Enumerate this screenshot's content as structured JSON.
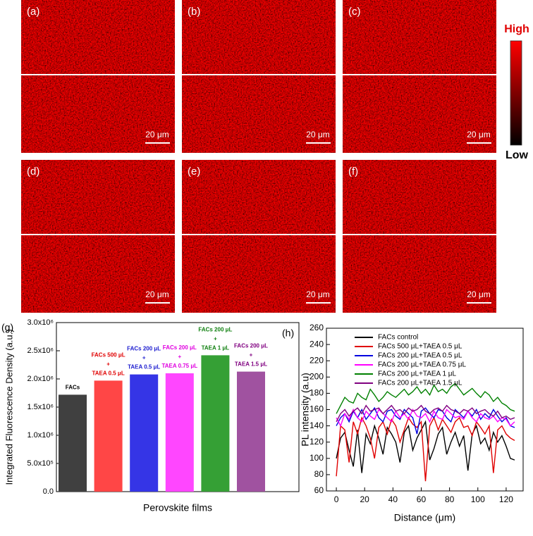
{
  "images": {
    "panels": [
      {
        "label": "(a)",
        "scale_bar": "20 μm"
      },
      {
        "label": "(b)",
        "scale_bar": "20 μm"
      },
      {
        "label": "(c)",
        "scale_bar": "20 μm"
      },
      {
        "label": "(d)",
        "scale_bar": "20 μm"
      },
      {
        "label": "(e)",
        "scale_bar": "20 μm"
      },
      {
        "label": "(f)",
        "scale_bar": "20 μm"
      }
    ],
    "colorbar": {
      "high": "High",
      "low": "Low"
    }
  },
  "chart_data": [
    {
      "type": "bar",
      "panel_label": "(g)",
      "x_label": "Perovskite films",
      "y_label": "Integrated Fluorescence Density (a.u.)",
      "categories": [
        [
          "FACs"
        ],
        [
          "FACs 500 μL",
          "+",
          "TAEA 0.5 μL"
        ],
        [
          "FACs 200 μL",
          "+",
          "TAEA 0.5 μL"
        ],
        [
          "FACs 200 μL",
          "+",
          "TAEA 0.75 μL"
        ],
        [
          "FACs 200 μL",
          "+",
          "TAEA 1 μL"
        ],
        [
          "FACs 200 μL",
          "+",
          "TAEA 1.5 μL"
        ]
      ],
      "values": [
        1720000,
        1970000,
        2080000,
        2100000,
        2420000,
        2130000
      ],
      "colors": [
        "#404040",
        "#ff4646",
        "#3535e6",
        "#ff46ff",
        "#35a035",
        "#a052a0"
      ],
      "label_colors": [
        "#000000",
        "#e00000",
        "#2020d0",
        "#e000e0",
        "#108010",
        "#800080"
      ],
      "ylim": [
        0,
        3000000
      ],
      "yticks": [
        {
          "value": 0,
          "label": "0.0"
        },
        {
          "value": 500000,
          "label": "5.0x10⁵"
        },
        {
          "value": 1000000,
          "label": "1.0x10⁶"
        },
        {
          "value": 1500000,
          "label": "1.5x10⁶"
        },
        {
          "value": 2000000,
          "label": "2.0x10⁶"
        },
        {
          "value": 2500000,
          "label": "2.5x10⁶"
        },
        {
          "value": 3000000,
          "label": "3.0x10⁶"
        }
      ]
    },
    {
      "type": "line",
      "panel_label": "(h)",
      "x_label": "Distance (μm)",
      "y_label": "PL intensity (a.u)",
      "legend": "upper left",
      "x": [
        0,
        3,
        6,
        9,
        12,
        15,
        18,
        21,
        24,
        27,
        30,
        33,
        36,
        39,
        42,
        45,
        48,
        51,
        54,
        57,
        60,
        63,
        66,
        69,
        72,
        75,
        78,
        81,
        84,
        87,
        90,
        93,
        96,
        99,
        102,
        105,
        108,
        111,
        114,
        117,
        120,
        123,
        126
      ],
      "series": [
        {
          "name": "FACs control",
          "color": "#000000",
          "values": [
            100,
            125,
            132,
            110,
            90,
            135,
            82,
            130,
            118,
            140,
            125,
            105,
            138,
            130,
            120,
            95,
            132,
            140,
            110,
            125,
            135,
            145,
            98,
            112,
            130,
            138,
            105,
            120,
            132,
            115,
            128,
            85,
            130,
            140,
            118,
            125,
            110,
            132,
            120,
            128,
            115,
            100,
            98
          ]
        },
        {
          "name": "FACs 500 μL+TAEA 0.5 μL",
          "color": "#e00000",
          "values": [
            78,
            140,
            135,
            95,
            145,
            130,
            150,
            140,
            125,
            100,
            138,
            145,
            130,
            148,
            140,
            120,
            135,
            150,
            142,
            138,
            145,
            72,
            140,
            150,
            135,
            148,
            140,
            132,
            145,
            150,
            138,
            140,
            128,
            145,
            138,
            130,
            140,
            82,
            135,
            140,
            130,
            125,
            122
          ]
        },
        {
          "name": "FACs 200 μL+TAEA 0.5 μL",
          "color": "#0000e0",
          "values": [
            140,
            150,
            155,
            145,
            158,
            150,
            160,
            148,
            155,
            162,
            150,
            145,
            158,
            160,
            152,
            148,
            160,
            155,
            150,
            130,
            158,
            162,
            155,
            150,
            160,
            158,
            150,
            145,
            160,
            155,
            150,
            158,
            152,
            160,
            148,
            155,
            150,
            160,
            152,
            145,
            150,
            140,
            138
          ]
        },
        {
          "name": "FACs 200 μL+TAEA 0.75 μL",
          "color": "#ff00ff",
          "values": [
            150,
            140,
            155,
            148,
            160,
            150,
            145,
            158,
            152,
            148,
            160,
            155,
            150,
            145,
            158,
            150,
            155,
            148,
            160,
            152,
            150,
            155,
            145,
            158,
            150,
            148,
            160,
            155,
            150,
            152,
            148,
            158,
            150,
            145,
            155,
            150,
            148,
            152,
            145,
            150,
            148,
            140,
            145
          ]
        },
        {
          "name": "FACs 200 μL+TAEA 1 μL",
          "color": "#008000",
          "values": [
            155,
            165,
            175,
            170,
            168,
            180,
            175,
            172,
            185,
            178,
            170,
            175,
            182,
            178,
            175,
            180,
            185,
            178,
            182,
            188,
            180,
            185,
            178,
            190,
            182,
            185,
            180,
            188,
            192,
            185,
            178,
            182,
            186,
            180,
            175,
            182,
            178,
            170,
            175,
            168,
            165,
            160,
            158
          ]
        },
        {
          "name": "FACs 200 μL+TAEA 1.5 μL",
          "color": "#800080",
          "values": [
            145,
            155,
            160,
            152,
            158,
            162,
            155,
            165,
            158,
            160,
            162,
            155,
            160,
            165,
            158,
            160,
            155,
            162,
            158,
            160,
            165,
            158,
            155,
            160,
            162,
            158,
            165,
            160,
            158,
            155,
            160,
            158,
            162,
            155,
            158,
            160,
            155,
            152,
            158,
            150,
            152,
            148,
            150
          ]
        }
      ],
      "xlim": [
        -7,
        132
      ],
      "ylim": [
        60,
        260
      ],
      "xticks": [
        0,
        20,
        40,
        60,
        80,
        100,
        120
      ],
      "yticks": [
        60,
        80,
        100,
        120,
        140,
        160,
        180,
        200,
        220,
        240,
        260
      ]
    }
  ]
}
